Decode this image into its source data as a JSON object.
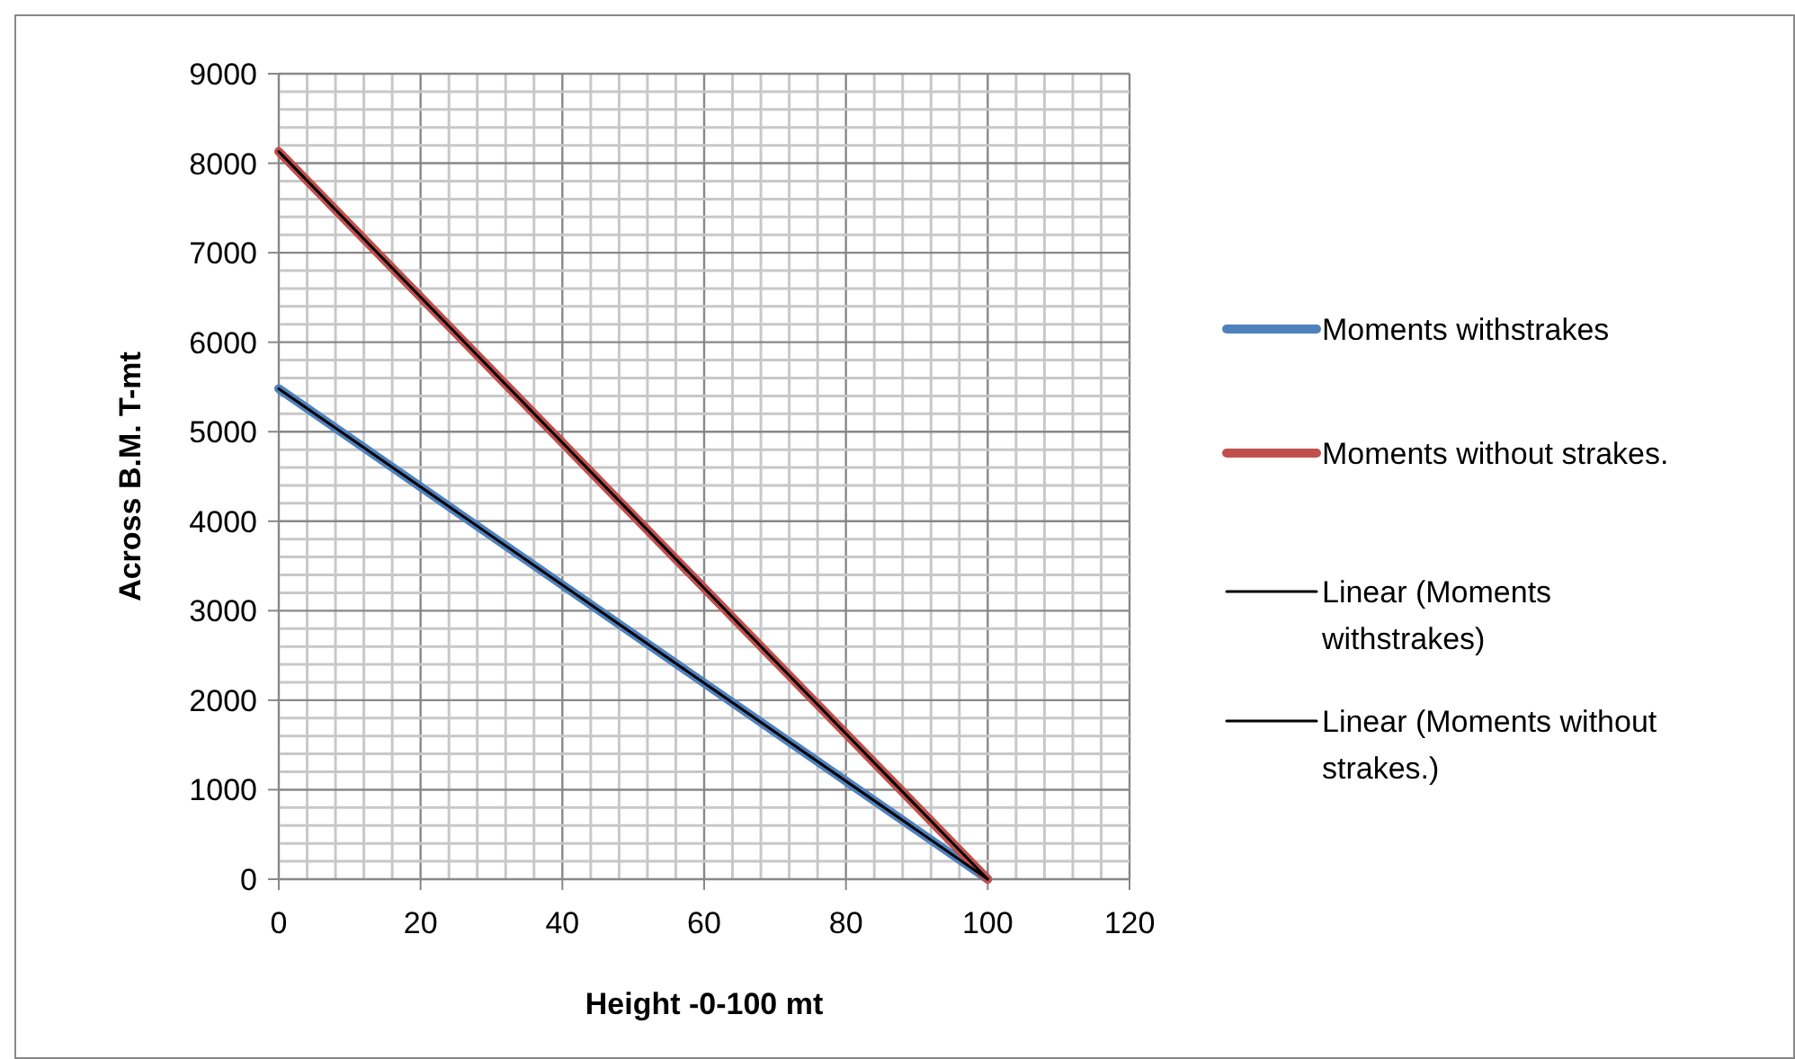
{
  "chart_data": {
    "type": "line",
    "xlabel": "Height -0-100 mt",
    "ylabel": "Across B.M. T-mt",
    "x": [
      0,
      100
    ],
    "series": [
      {
        "name": "Moments withstrakes",
        "color": "#4f81bd",
        "values": [
          5480,
          0
        ]
      },
      {
        "name": "Moments without strakes.",
        "color": "#c0504d",
        "values": [
          8130,
          0
        ]
      },
      {
        "name": "Linear (Moments withstrakes)",
        "color": "#000000",
        "values": [
          5480,
          0
        ]
      },
      {
        "name": "Linear (Moments without strakes.)",
        "color": "#000000",
        "values": [
          8130,
          0
        ]
      }
    ],
    "xlim": [
      0,
      120
    ],
    "xticks": [
      0,
      {
        "value": 4,
        "label": null
      },
      {
        "value": 8,
        "label": null
      },
      {
        "value": 12,
        "label": null
      },
      {
        "value": 16,
        "label": null
      },
      20,
      {
        "value": 24,
        "label": null
      },
      {
        "value": 28,
        "label": null
      },
      {
        "value": 32,
        "label": null
      },
      {
        "value": 36,
        "label": null
      },
      40,
      {
        "value": 44,
        "label": null
      },
      {
        "value": 48,
        "label": null
      },
      {
        "value": 52,
        "label": null
      },
      {
        "value": 56,
        "label": null
      },
      60,
      {
        "value": 64,
        "label": null
      },
      {
        "value": 68,
        "label": null
      },
      {
        "value": 72,
        "label": null
      },
      {
        "value": 76,
        "label": null
      },
      80,
      {
        "value": 84,
        "label": null
      },
      {
        "value": 88,
        "label": null
      },
      {
        "value": 92,
        "label": null
      },
      {
        "value": 96,
        "label": null
      },
      100,
      {
        "value": 104,
        "label": null
      },
      {
        "value": 108,
        "label": null
      },
      {
        "value": 112,
        "label": null
      },
      {
        "value": 116,
        "label": null
      },
      120
    ],
    "ylim": [
      0,
      9000
    ],
    "yticks": [
      0,
      {
        "value": 200,
        "label": null
      },
      {
        "value": 400,
        "label": null
      },
      {
        "value": 600,
        "label": null
      },
      {
        "value": 800,
        "label": null
      },
      1000,
      {
        "value": 1200,
        "label": null
      },
      {
        "value": 1400,
        "label": null
      },
      {
        "value": 1600,
        "label": null
      },
      {
        "value": 1800,
        "label": null
      },
      2000,
      {
        "value": 2200,
        "label": null
      },
      {
        "value": 2400,
        "label": null
      },
      {
        "value": 2600,
        "label": null
      },
      {
        "value": 2800,
        "label": null
      },
      3000,
      {
        "value": 3200,
        "label": null
      },
      {
        "value": 3400,
        "label": null
      },
      {
        "value": 3600,
        "label": null
      },
      {
        "value": 3800,
        "label": null
      },
      4000,
      {
        "value": 4200,
        "label": null
      },
      {
        "value": 4400,
        "label": null
      },
      {
        "value": 4600,
        "label": null
      },
      {
        "value": 4800,
        "label": null
      },
      5000,
      {
        "value": 5200,
        "label": null
      },
      {
        "value": 5400,
        "label": null
      },
      {
        "value": 5600,
        "label": null
      },
      {
        "value": 5800,
        "label": null
      },
      6000,
      {
        "value": 6200,
        "label": null
      },
      {
        "value": 6400,
        "label": null
      },
      {
        "value": 6600,
        "label": null
      },
      {
        "value": 6800,
        "label": null
      },
      7000,
      {
        "value": 7200,
        "label": null
      },
      {
        "value": 7400,
        "label": null
      },
      {
        "value": 7600,
        "label": null
      },
      {
        "value": 7800,
        "label": null
      },
      8000,
      {
        "value": 8200,
        "label": null
      },
      {
        "value": 8400,
        "label": null
      },
      {
        "value": 8600,
        "label": null
      },
      {
        "value": 8800,
        "label": null
      },
      9000
    ],
    "grid": true,
    "legend": "right",
    "marker": "none",
    "line_style": "solid"
  }
}
